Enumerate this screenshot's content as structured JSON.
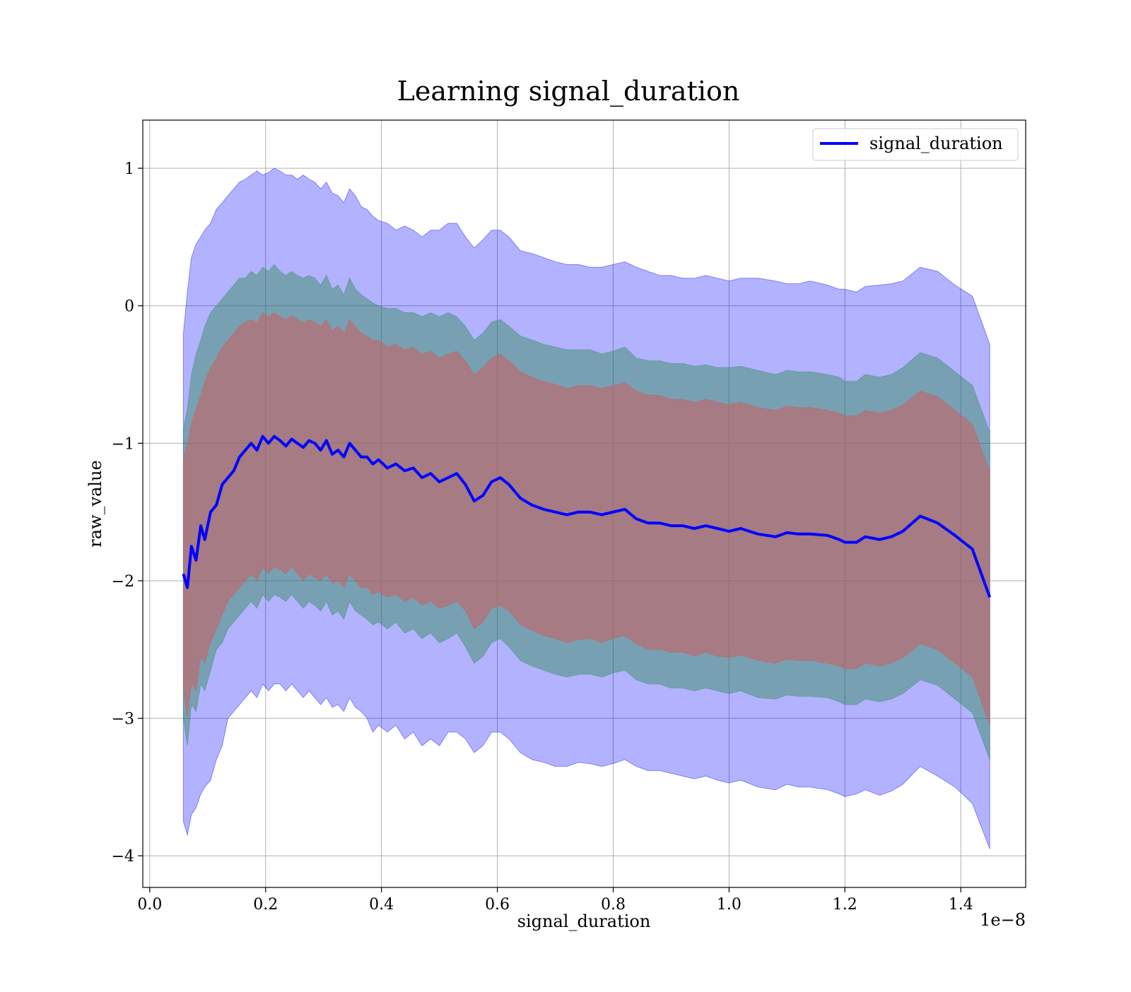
{
  "chart_data": {
    "type": "line",
    "title": "Learning signal_duration",
    "xlabel": "signal_duration",
    "ylabel": "raw_value",
    "x_offset_label": "1e−8",
    "xlim": [
      -0.012,
      1.512
    ],
    "ylim": [
      -4.23,
      1.35
    ],
    "x_ticks": [
      0.0,
      0.2,
      0.4,
      0.6,
      0.8,
      1.0,
      1.2,
      1.4
    ],
    "x_tick_labels": [
      "0.0",
      "0.2",
      "0.4",
      "0.6",
      "0.8",
      "1.0",
      "1.2",
      "1.4"
    ],
    "y_ticks": [
      1,
      0,
      -1,
      -2,
      -3,
      -4
    ],
    "y_tick_labels": [
      "1",
      "0",
      "−1",
      "−2",
      "−3",
      "−4"
    ],
    "grid": true,
    "legend_position": "top-right",
    "colors": {
      "line": "#0000ff",
      "band_outer": "#0000ff",
      "band_middle": "#2e8b57",
      "band_inner": "#cd5c5c"
    },
    "series": [
      {
        "name": "signal_duration",
        "x": [
          0.058,
          0.065,
          0.072,
          0.08,
          0.088,
          0.095,
          0.105,
          0.115,
          0.125,
          0.135,
          0.145,
          0.155,
          0.165,
          0.175,
          0.185,
          0.195,
          0.205,
          0.215,
          0.225,
          0.235,
          0.245,
          0.255,
          0.265,
          0.275,
          0.285,
          0.295,
          0.305,
          0.315,
          0.325,
          0.335,
          0.345,
          0.355,
          0.365,
          0.375,
          0.385,
          0.395,
          0.41,
          0.425,
          0.44,
          0.455,
          0.47,
          0.485,
          0.5,
          0.515,
          0.53,
          0.545,
          0.56,
          0.575,
          0.59,
          0.605,
          0.62,
          0.64,
          0.66,
          0.68,
          0.7,
          0.72,
          0.74,
          0.76,
          0.78,
          0.8,
          0.82,
          0.84,
          0.86,
          0.88,
          0.9,
          0.92,
          0.94,
          0.96,
          0.98,
          1.0,
          1.02,
          1.05,
          1.08,
          1.1,
          1.12,
          1.14,
          1.17,
          1.19,
          1.2,
          1.22,
          1.235,
          1.26,
          1.28,
          1.3,
          1.33,
          1.36,
          1.39,
          1.42,
          1.45
        ],
        "y": [
          -1.95,
          -2.05,
          -1.75,
          -1.85,
          -1.6,
          -1.7,
          -1.5,
          -1.45,
          -1.3,
          -1.25,
          -1.2,
          -1.1,
          -1.05,
          -1.0,
          -1.05,
          -0.95,
          -1.0,
          -0.95,
          -0.98,
          -1.02,
          -0.97,
          -1.0,
          -1.03,
          -0.98,
          -1.0,
          -1.05,
          -0.98,
          -1.08,
          -1.05,
          -1.1,
          -1.0,
          -1.05,
          -1.1,
          -1.1,
          -1.15,
          -1.12,
          -1.18,
          -1.15,
          -1.2,
          -1.18,
          -1.25,
          -1.22,
          -1.28,
          -1.25,
          -1.22,
          -1.3,
          -1.42,
          -1.38,
          -1.28,
          -1.25,
          -1.3,
          -1.4,
          -1.45,
          -1.48,
          -1.5,
          -1.52,
          -1.5,
          -1.5,
          -1.52,
          -1.5,
          -1.48,
          -1.55,
          -1.58,
          -1.58,
          -1.6,
          -1.6,
          -1.62,
          -1.6,
          -1.62,
          -1.64,
          -1.62,
          -1.66,
          -1.68,
          -1.65,
          -1.66,
          -1.66,
          -1.67,
          -1.7,
          -1.72,
          -1.72,
          -1.68,
          -1.7,
          -1.68,
          -1.64,
          -1.53,
          -1.58,
          -1.67,
          -1.77,
          -2.12
        ],
        "band_outer": {
          "upper": [
            -0.2,
            0.1,
            0.35,
            0.45,
            0.5,
            0.55,
            0.6,
            0.7,
            0.75,
            0.8,
            0.85,
            0.9,
            0.92,
            0.95,
            0.98,
            0.95,
            0.97,
            1.0,
            0.98,
            0.95,
            0.95,
            0.92,
            0.95,
            0.92,
            0.9,
            0.85,
            0.9,
            0.82,
            0.8,
            0.75,
            0.85,
            0.8,
            0.72,
            0.7,
            0.65,
            0.62,
            0.6,
            0.55,
            0.58,
            0.55,
            0.5,
            0.55,
            0.55,
            0.6,
            0.6,
            0.5,
            0.42,
            0.48,
            0.55,
            0.55,
            0.5,
            0.4,
            0.38,
            0.35,
            0.32,
            0.3,
            0.3,
            0.28,
            0.28,
            0.3,
            0.32,
            0.28,
            0.25,
            0.22,
            0.22,
            0.2,
            0.2,
            0.22,
            0.2,
            0.18,
            0.2,
            0.2,
            0.18,
            0.16,
            0.16,
            0.18,
            0.15,
            0.12,
            0.12,
            0.1,
            0.14,
            0.15,
            0.16,
            0.18,
            0.28,
            0.25,
            0.15,
            0.07,
            -0.28
          ],
          "lower": [
            -3.75,
            -3.85,
            -3.7,
            -3.65,
            -3.55,
            -3.5,
            -3.45,
            -3.3,
            -3.2,
            -3.0,
            -2.95,
            -2.9,
            -2.85,
            -2.8,
            -2.85,
            -2.75,
            -2.8,
            -2.75,
            -2.75,
            -2.8,
            -2.75,
            -2.8,
            -2.85,
            -2.8,
            -2.85,
            -2.9,
            -2.85,
            -2.92,
            -2.9,
            -2.95,
            -2.85,
            -2.92,
            -2.95,
            -3.0,
            -3.1,
            -3.05,
            -3.1,
            -3.05,
            -3.15,
            -3.1,
            -3.2,
            -3.15,
            -3.2,
            -3.1,
            -3.1,
            -3.15,
            -3.25,
            -3.2,
            -3.1,
            -3.1,
            -3.15,
            -3.25,
            -3.3,
            -3.32,
            -3.35,
            -3.35,
            -3.32,
            -3.33,
            -3.35,
            -3.33,
            -3.3,
            -3.35,
            -3.38,
            -3.38,
            -3.4,
            -3.42,
            -3.44,
            -3.42,
            -3.45,
            -3.47,
            -3.45,
            -3.5,
            -3.52,
            -3.48,
            -3.5,
            -3.5,
            -3.52,
            -3.55,
            -3.57,
            -3.55,
            -3.52,
            -3.56,
            -3.53,
            -3.48,
            -3.35,
            -3.42,
            -3.5,
            -3.62,
            -3.95
          ]
        },
        "band_middle": {
          "upper": [
            -0.9,
            -0.75,
            -0.5,
            -0.35,
            -0.25,
            -0.15,
            -0.05,
            0.0,
            0.05,
            0.1,
            0.15,
            0.2,
            0.2,
            0.25,
            0.22,
            0.28,
            0.25,
            0.3,
            0.25,
            0.22,
            0.25,
            0.22,
            0.2,
            0.22,
            0.2,
            0.15,
            0.22,
            0.12,
            0.15,
            0.08,
            0.2,
            0.12,
            0.08,
            0.05,
            0.02,
            0.0,
            -0.02,
            -0.02,
            -0.05,
            -0.05,
            -0.08,
            -0.05,
            -0.08,
            -0.05,
            -0.08,
            -0.15,
            -0.25,
            -0.2,
            -0.12,
            -0.1,
            -0.15,
            -0.22,
            -0.25,
            -0.28,
            -0.3,
            -0.32,
            -0.32,
            -0.32,
            -0.35,
            -0.33,
            -0.3,
            -0.38,
            -0.4,
            -0.4,
            -0.42,
            -0.42,
            -0.44,
            -0.43,
            -0.45,
            -0.45,
            -0.44,
            -0.47,
            -0.5,
            -0.47,
            -0.48,
            -0.48,
            -0.5,
            -0.52,
            -0.55,
            -0.55,
            -0.5,
            -0.52,
            -0.5,
            -0.45,
            -0.34,
            -0.38,
            -0.48,
            -0.58,
            -0.92
          ],
          "lower": [
            -3.0,
            -3.2,
            -2.9,
            -2.95,
            -2.75,
            -2.8,
            -2.65,
            -2.5,
            -2.45,
            -2.35,
            -2.3,
            -2.25,
            -2.2,
            -2.15,
            -2.2,
            -2.1,
            -2.15,
            -2.1,
            -2.12,
            -2.15,
            -2.1,
            -2.15,
            -2.2,
            -2.15,
            -2.18,
            -2.22,
            -2.15,
            -2.25,
            -2.22,
            -2.28,
            -2.15,
            -2.22,
            -2.25,
            -2.28,
            -2.32,
            -2.3,
            -2.35,
            -2.3,
            -2.38,
            -2.35,
            -2.42,
            -2.38,
            -2.45,
            -2.42,
            -2.38,
            -2.48,
            -2.6,
            -2.55,
            -2.45,
            -2.42,
            -2.48,
            -2.58,
            -2.62,
            -2.65,
            -2.68,
            -2.7,
            -2.68,
            -2.68,
            -2.7,
            -2.67,
            -2.65,
            -2.72,
            -2.75,
            -2.75,
            -2.78,
            -2.78,
            -2.8,
            -2.78,
            -2.8,
            -2.82,
            -2.8,
            -2.85,
            -2.86,
            -2.83,
            -2.84,
            -2.84,
            -2.85,
            -2.88,
            -2.9,
            -2.9,
            -2.86,
            -2.88,
            -2.86,
            -2.82,
            -2.72,
            -2.76,
            -2.86,
            -2.96,
            -3.3
          ]
        },
        "band_inner": {
          "upper": [
            -1.1,
            -1.0,
            -0.85,
            -0.75,
            -0.65,
            -0.55,
            -0.45,
            -0.38,
            -0.3,
            -0.25,
            -0.2,
            -0.15,
            -0.12,
            -0.1,
            -0.12,
            -0.05,
            -0.08,
            -0.05,
            -0.08,
            -0.1,
            -0.07,
            -0.1,
            -0.12,
            -0.1,
            -0.12,
            -0.15,
            -0.1,
            -0.18,
            -0.15,
            -0.2,
            -0.1,
            -0.15,
            -0.2,
            -0.22,
            -0.25,
            -0.25,
            -0.3,
            -0.28,
            -0.32,
            -0.3,
            -0.35,
            -0.33,
            -0.38,
            -0.35,
            -0.33,
            -0.4,
            -0.5,
            -0.45,
            -0.38,
            -0.35,
            -0.4,
            -0.48,
            -0.52,
            -0.55,
            -0.57,
            -0.6,
            -0.58,
            -0.58,
            -0.6,
            -0.58,
            -0.56,
            -0.62,
            -0.65,
            -0.65,
            -0.68,
            -0.68,
            -0.7,
            -0.68,
            -0.7,
            -0.72,
            -0.7,
            -0.74,
            -0.76,
            -0.73,
            -0.74,
            -0.74,
            -0.76,
            -0.78,
            -0.8,
            -0.8,
            -0.76,
            -0.78,
            -0.76,
            -0.72,
            -0.62,
            -0.66,
            -0.76,
            -0.86,
            -1.2
          ],
          "lower": [
            -2.8,
            -3.0,
            -2.75,
            -2.8,
            -2.55,
            -2.6,
            -2.45,
            -2.35,
            -2.25,
            -2.15,
            -2.1,
            -2.05,
            -2.0,
            -1.95,
            -2.0,
            -1.9,
            -1.95,
            -1.9,
            -1.92,
            -1.95,
            -1.9,
            -1.95,
            -2.0,
            -1.95,
            -1.98,
            -2.0,
            -1.95,
            -2.02,
            -2.0,
            -2.05,
            -1.95,
            -2.0,
            -2.05,
            -2.05,
            -2.1,
            -2.08,
            -2.12,
            -2.1,
            -2.15,
            -2.12,
            -2.18,
            -2.15,
            -2.2,
            -2.18,
            -2.15,
            -2.22,
            -2.35,
            -2.3,
            -2.2,
            -2.18,
            -2.22,
            -2.32,
            -2.36,
            -2.4,
            -2.42,
            -2.45,
            -2.43,
            -2.42,
            -2.45,
            -2.42,
            -2.4,
            -2.46,
            -2.5,
            -2.5,
            -2.52,
            -2.52,
            -2.55,
            -2.52,
            -2.55,
            -2.56,
            -2.54,
            -2.58,
            -2.6,
            -2.57,
            -2.58,
            -2.58,
            -2.6,
            -2.62,
            -2.64,
            -2.64,
            -2.6,
            -2.62,
            -2.6,
            -2.56,
            -2.46,
            -2.5,
            -2.6,
            -2.7,
            -3.05
          ]
        }
      }
    ]
  }
}
